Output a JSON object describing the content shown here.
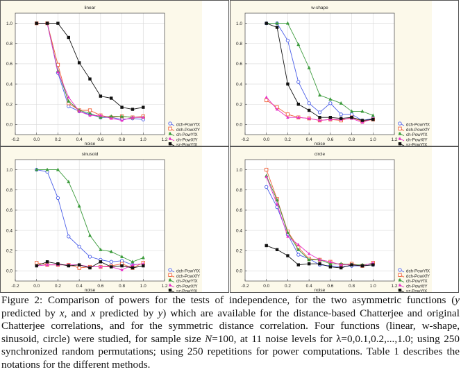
{
  "chart_data": [
    {
      "type": "line",
      "title": "linear",
      "xlabel": "noise",
      "ylabel": "",
      "xlim": [
        -0.2,
        1.2
      ],
      "ylim": [
        -0.1,
        1.1
      ],
      "xticks": [
        "-0.2",
        "0.0",
        "0.2",
        "0.4",
        "0.6",
        "0.8",
        "1.0",
        "1.2"
      ],
      "yticks": [
        "0.0",
        "0.2",
        "0.4",
        "0.6",
        "0.8",
        "1.0"
      ],
      "grid": true,
      "legend_position": "bottom-right-outside",
      "x": [
        0,
        0.1,
        0.2,
        0.3,
        0.4,
        0.5,
        0.6,
        0.7,
        0.8,
        0.9,
        1.0
      ],
      "series": [
        {
          "name": "dch-PowYfX",
          "color": "#4a5ee8",
          "marker": "circle-open",
          "values": [
            1,
            1,
            0.51,
            0.18,
            0.13,
            0.1,
            0.07,
            0.07,
            0.05,
            0.06,
            0.05
          ]
        },
        {
          "name": "dch-PowXfY",
          "color": "#f0603a",
          "marker": "square-open",
          "values": [
            1,
            1,
            0.59,
            0.21,
            0.14,
            0.14,
            0.09,
            0.07,
            0.08,
            0.07,
            0.08
          ]
        },
        {
          "name": "ch-PowYfX",
          "color": "#3a9a3a",
          "marker": "triangle",
          "values": [
            1,
            1,
            0.53,
            0.23,
            0.14,
            0.11,
            0.07,
            0.08,
            0.08,
            0.07,
            0.07
          ]
        },
        {
          "name": "ch-PowXfY",
          "color": "#e830c8",
          "marker": "triangle-filled",
          "values": [
            1,
            1,
            0.52,
            0.27,
            0.13,
            0.09,
            0.09,
            0.06,
            0.04,
            0.07,
            0.07
          ]
        },
        {
          "name": "sz-PowYfX",
          "color": "#111111",
          "marker": "square-filled",
          "values": [
            1,
            1,
            1,
            0.86,
            0.61,
            0.45,
            0.28,
            0.26,
            0.17,
            0.15,
            0.17
          ]
        }
      ]
    },
    {
      "type": "line",
      "title": "w-shape",
      "xlabel": "noise",
      "ylabel": "",
      "xlim": [
        -0.2,
        1.2
      ],
      "ylim": [
        -0.1,
        1.1
      ],
      "xticks": [
        "-0.2",
        "0.0",
        "0.2",
        "0.4",
        "0.6",
        "0.8",
        "1.0",
        "1.2"
      ],
      "yticks": [
        "0.0",
        "0.2",
        "0.4",
        "0.6",
        "0.8",
        "1.0"
      ],
      "grid": true,
      "legend_position": "bottom-right-outside",
      "x": [
        0,
        0.1,
        0.2,
        0.3,
        0.4,
        0.5,
        0.6,
        0.7,
        0.8,
        0.9,
        1.0
      ],
      "series": [
        {
          "name": "dch-PowYfX",
          "color": "#4a5ee8",
          "marker": "circle-open",
          "values": [
            1,
            1,
            0.83,
            0.42,
            0.21,
            0.12,
            0.21,
            0.1,
            0.1,
            0.04,
            0.06
          ]
        },
        {
          "name": "dch-PowXfY",
          "color": "#f0603a",
          "marker": "square-open",
          "values": [
            0.24,
            0.17,
            0.1,
            0.07,
            0.06,
            0.04,
            0.05,
            0.04,
            0.07,
            0.03,
            0.05
          ]
        },
        {
          "name": "ch-PowYfX",
          "color": "#3a9a3a",
          "marker": "triangle",
          "values": [
            1,
            1,
            1,
            0.79,
            0.56,
            0.29,
            0.25,
            0.21,
            0.13,
            0.13,
            0.09
          ]
        },
        {
          "name": "ch-PowXfY",
          "color": "#e830c8",
          "marker": "triangle-filled",
          "values": [
            0.27,
            0.15,
            0.07,
            0.07,
            0.06,
            0.04,
            0.05,
            0.05,
            0.06,
            0.02,
            0.06
          ]
        },
        {
          "name": "sz-PowYfX",
          "color": "#111111",
          "marker": "square-filled",
          "values": [
            1,
            0.96,
            0.4,
            0.2,
            0.14,
            0.07,
            0.07,
            0.06,
            0.07,
            0.04,
            0.05
          ]
        }
      ]
    },
    {
      "type": "line",
      "title": "sinusoid",
      "xlabel": "noise",
      "ylabel": "",
      "xlim": [
        -0.2,
        1.2
      ],
      "ylim": [
        -0.1,
        1.1
      ],
      "xticks": [
        "-0.2",
        "0.0",
        "0.2",
        "0.4",
        "0.6",
        "0.8",
        "1.0",
        "1.2"
      ],
      "yticks": [
        "0.0",
        "0.2",
        "0.4",
        "0.6",
        "0.8",
        "1.0"
      ],
      "grid": true,
      "legend_position": "bottom-right-outside",
      "x": [
        0,
        0.1,
        0.2,
        0.3,
        0.4,
        0.5,
        0.6,
        0.7,
        0.8,
        0.9,
        1.0
      ],
      "series": [
        {
          "name": "dch-PowYfX",
          "color": "#4a5ee8",
          "marker": "circle-open",
          "values": [
            1,
            0.98,
            0.72,
            0.34,
            0.24,
            0.14,
            0.11,
            0.09,
            0.1,
            0.06,
            0.07
          ]
        },
        {
          "name": "dch-PowXfY",
          "color": "#f0603a",
          "marker": "square-open",
          "values": [
            0.08,
            0.06,
            0.06,
            0.06,
            0.03,
            0.04,
            0.04,
            0.05,
            0.07,
            0.03,
            0.08
          ]
        },
        {
          "name": "ch-PowYfX",
          "color": "#3a9a3a",
          "marker": "triangle",
          "values": [
            1,
            1,
            1,
            0.88,
            0.64,
            0.35,
            0.21,
            0.19,
            0.14,
            0.09,
            0.13
          ]
        },
        {
          "name": "ch-PowXfY",
          "color": "#e830c8",
          "marker": "triangle-filled",
          "values": [
            0.05,
            0.06,
            0.06,
            0.06,
            0.06,
            0.04,
            0.04,
            0.04,
            0.01,
            0.06,
            0.07
          ]
        },
        {
          "name": "sz-PowYfX",
          "color": "#111111",
          "marker": "square-filled",
          "values": [
            0.05,
            0.09,
            0.07,
            0.05,
            0.06,
            0.03,
            0.09,
            0.04,
            0.05,
            0.03,
            0.05
          ]
        }
      ]
    },
    {
      "type": "line",
      "title": "circle",
      "xlabel": "noise",
      "ylabel": "",
      "xlim": [
        -0.2,
        1.2
      ],
      "ylim": [
        -0.1,
        1.1
      ],
      "xticks": [
        "-0.2",
        "0.0",
        "0.2",
        "0.4",
        "0.6",
        "0.8",
        "1.0",
        "1.2"
      ],
      "yticks": [
        "0.0",
        "0.2",
        "0.4",
        "0.6",
        "0.8",
        "1.0"
      ],
      "grid": true,
      "legend_position": "bottom-right-outside",
      "x": [
        0,
        0.1,
        0.2,
        0.3,
        0.4,
        0.5,
        0.6,
        0.7,
        0.8,
        0.9,
        1.0
      ],
      "series": [
        {
          "name": "dch-PowYfX",
          "color": "#4a5ee8",
          "marker": "circle-open",
          "values": [
            0.83,
            0.63,
            0.36,
            0.16,
            0.12,
            0.06,
            0.05,
            0.04,
            0.05,
            0.05,
            0.06
          ]
        },
        {
          "name": "dch-PowXfY",
          "color": "#f0603a",
          "marker": "square-open",
          "values": [
            1.0,
            0.71,
            0.39,
            0.23,
            0.12,
            0.11,
            0.09,
            0.06,
            0.07,
            0.05,
            0.08
          ]
        },
        {
          "name": "ch-PowYfX",
          "color": "#3a9a3a",
          "marker": "triangle",
          "values": [
            0.94,
            0.7,
            0.38,
            0.21,
            0.11,
            0.11,
            0.07,
            0.07,
            0.06,
            0.06,
            0.07
          ]
        },
        {
          "name": "ch-PowXfY",
          "color": "#e830c8",
          "marker": "triangle-filled",
          "values": [
            0.93,
            0.66,
            0.34,
            0.26,
            0.17,
            0.11,
            0.09,
            0.06,
            0.06,
            0.05,
            0.08
          ]
        },
        {
          "name": "sz-PowYfX",
          "color": "#111111",
          "marker": "square-filled",
          "values": [
            0.25,
            0.21,
            0.15,
            0.06,
            0.07,
            0.07,
            0.04,
            0.03,
            0.06,
            0.05,
            0.06
          ]
        }
      ]
    }
  ],
  "caption": {
    "segments": [
      {
        "text": "Figure 2: Comparison of powers for the tests of independence, for the two asymmetric functions (",
        "italic": false
      },
      {
        "text": "y",
        "italic": true
      },
      {
        "text": " predicted by ",
        "italic": false
      },
      {
        "text": "x",
        "italic": true
      },
      {
        "text": ", and ",
        "italic": false
      },
      {
        "text": "x",
        "italic": true
      },
      {
        "text": " predicted by ",
        "italic": false
      },
      {
        "text": "y",
        "italic": true
      },
      {
        "text": ") which are available for the distance-based Chatterjee and original Chatterjee correlations, and for the symmetric distance correlation. Four functions (linear, w-shape, sinusoid, circle) were studied, for sample size ",
        "italic": false
      },
      {
        "text": "N",
        "italic": true
      },
      {
        "text": "=100, at 11 noise levels for λ=0,0.1,0.2,...,1.0; using 250 synchronized random permutations; using 250 repetitions for power computations. Table 1 describes the notations for the different methods.",
        "italic": false
      }
    ]
  }
}
